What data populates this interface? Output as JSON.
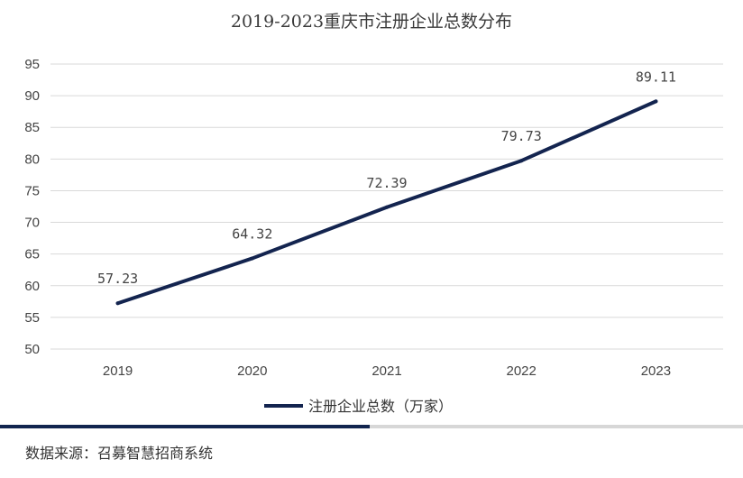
{
  "chart_data": {
    "type": "line",
    "title": "2019-2023重庆市注册企业总数分布",
    "categories": [
      "2019",
      "2020",
      "2021",
      "2022",
      "2023"
    ],
    "series": [
      {
        "name": "注册企业总数（万家）",
        "values": [
          57.23,
          64.32,
          72.39,
          79.73,
          89.11
        ]
      }
    ],
    "data_labels": [
      "57.23",
      "64.32",
      "72.39",
      "79.73",
      "89.11"
    ],
    "ylim": [
      50,
      95
    ],
    "yticks": [
      50,
      55,
      60,
      65,
      70,
      75,
      80,
      85,
      90,
      95
    ],
    "grid": true,
    "legend_position": "bottom",
    "xlabel": "",
    "ylabel": "",
    "line_color": "#13244f",
    "grid_color": "#d9d9d9"
  },
  "footer": {
    "source": "数据来源：召募智慧招商系统"
  }
}
